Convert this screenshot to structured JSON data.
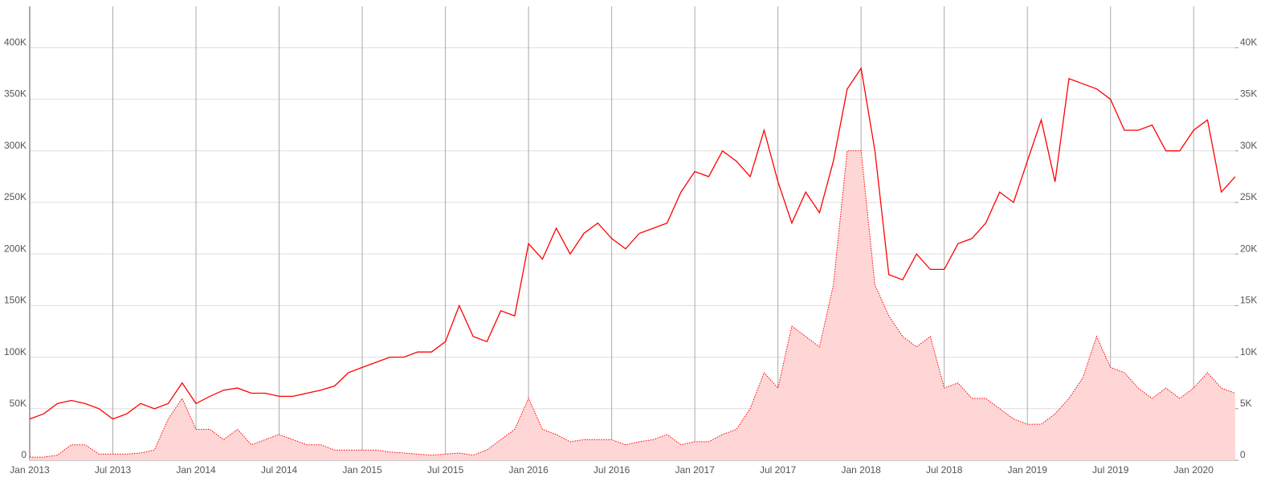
{
  "chart_data": {
    "type": "line-area",
    "x": [
      "2013-01",
      "2013-02",
      "2013-03",
      "2013-04",
      "2013-05",
      "2013-06",
      "2013-07",
      "2013-08",
      "2013-09",
      "2013-10",
      "2013-11",
      "2013-12",
      "2014-01",
      "2014-02",
      "2014-03",
      "2014-04",
      "2014-05",
      "2014-06",
      "2014-07",
      "2014-08",
      "2014-09",
      "2014-10",
      "2014-11",
      "2014-12",
      "2015-01",
      "2015-02",
      "2015-03",
      "2015-04",
      "2015-05",
      "2015-06",
      "2015-07",
      "2015-08",
      "2015-09",
      "2015-10",
      "2015-11",
      "2015-12",
      "2016-01",
      "2016-02",
      "2016-03",
      "2016-04",
      "2016-05",
      "2016-06",
      "2016-07",
      "2016-08",
      "2016-09",
      "2016-10",
      "2016-11",
      "2016-12",
      "2017-01",
      "2017-02",
      "2017-03",
      "2017-04",
      "2017-05",
      "2017-06",
      "2017-07",
      "2017-08",
      "2017-09",
      "2017-10",
      "2017-11",
      "2017-12",
      "2018-01",
      "2018-02",
      "2018-03",
      "2018-04",
      "2018-05",
      "2018-06",
      "2018-07",
      "2018-08",
      "2018-09",
      "2018-10",
      "2018-11",
      "2018-12",
      "2019-01",
      "2019-02",
      "2019-03",
      "2019-04",
      "2019-05",
      "2019-06",
      "2019-07",
      "2019-08",
      "2019-09",
      "2019-10",
      "2019-11",
      "2019-12",
      "2020-01",
      "2020-02",
      "2020-03",
      "2020-04"
    ],
    "series": [
      {
        "color": "#ff0000",
        "kind": "line",
        "axis": "y",
        "values": [
          40000,
          45000,
          55000,
          58000,
          55000,
          50000,
          40000,
          45000,
          55000,
          50000,
          55000,
          75000,
          55000,
          62000,
          68000,
          70000,
          65000,
          65000,
          62000,
          62000,
          65000,
          68000,
          72000,
          85000,
          90000,
          95000,
          100000,
          100000,
          105000,
          105000,
          115000,
          150000,
          120000,
          115000,
          145000,
          140000,
          210000,
          195000,
          225000,
          200000,
          220000,
          230000,
          215000,
          205000,
          220000,
          225000,
          230000,
          260000,
          280000,
          275000,
          300000,
          290000,
          275000,
          320000,
          270000,
          230000,
          260000,
          240000,
          290000,
          360000,
          380000,
          300000,
          180000,
          175000,
          200000,
          185000,
          185000,
          210000,
          215000,
          230000,
          260000,
          250000,
          290000,
          330000,
          270000,
          370000,
          365000,
          360000,
          350000,
          320000,
          320000,
          325000,
          300000,
          300000,
          320000,
          330000,
          260000,
          275000
        ]
      },
      {
        "color": "#ffd6d6",
        "stroke": "#ff0000",
        "kind": "area",
        "axis": "y2",
        "values": [
          300,
          300,
          500,
          1500,
          1500,
          600,
          600,
          600,
          700,
          1000,
          4000,
          6000,
          3000,
          3000,
          2000,
          3000,
          1500,
          2000,
          2500,
          2000,
          1500,
          1500,
          1000,
          1000,
          1000,
          1000,
          800,
          700,
          600,
          500,
          600,
          700,
          500,
          1000,
          2000,
          3000,
          6000,
          3000,
          2500,
          1800,
          2000,
          2000,
          2000,
          1500,
          1800,
          2000,
          2500,
          1500,
          1800,
          1800,
          2500,
          3000,
          5000,
          8500,
          7000,
          13000,
          12000,
          11000,
          17000,
          30000,
          30000,
          17000,
          14000,
          12000,
          11000,
          12000,
          7000,
          7500,
          6000,
          6000,
          5000,
          4000,
          3500,
          3500,
          4500,
          6000,
          8000,
          12000,
          9000,
          8500,
          7000,
          6000,
          7000,
          6000,
          7000,
          8500,
          7000,
          6500
        ]
      }
    ],
    "xlim": [
      "2013-01",
      "2020-04"
    ],
    "xticks": [
      {
        "value": "2013-01",
        "label": "Jan 2013"
      },
      {
        "value": "2013-07",
        "label": "Jul 2013"
      },
      {
        "value": "2014-01",
        "label": "Jan 2014"
      },
      {
        "value": "2014-07",
        "label": "Jul 2014"
      },
      {
        "value": "2015-01",
        "label": "Jan 2015"
      },
      {
        "value": "2015-07",
        "label": "Jul 2015"
      },
      {
        "value": "2016-01",
        "label": "Jan 2016"
      },
      {
        "value": "2016-07",
        "label": "Jul 2016"
      },
      {
        "value": "2017-01",
        "label": "Jan 2017"
      },
      {
        "value": "2017-07",
        "label": "Jul 2017"
      },
      {
        "value": "2018-01",
        "label": "Jan 2018"
      },
      {
        "value": "2018-07",
        "label": "Jul 2018"
      },
      {
        "value": "2019-01",
        "label": "Jan 2019"
      },
      {
        "value": "2019-07",
        "label": "Jul 2019"
      },
      {
        "value": "2020-01",
        "label": "Jan 2020"
      }
    ],
    "ylim": [
      0,
      440000
    ],
    "yticks": [
      0,
      {
        "value": 50000,
        "label": "50K"
      },
      {
        "value": 100000,
        "label": "100K"
      },
      {
        "value": 150000,
        "label": "150K"
      },
      {
        "value": 200000,
        "label": "200K"
      },
      {
        "value": 250000,
        "label": "250K"
      },
      {
        "value": 300000,
        "label": "300K"
      },
      {
        "value": 350000,
        "label": "350K"
      },
      {
        "value": 400000,
        "label": "400K"
      }
    ],
    "y2lim": [
      0,
      44000
    ],
    "y2ticks": [
      0,
      {
        "value": 5000,
        "label": "5K"
      },
      {
        "value": 10000,
        "label": "10K"
      },
      {
        "value": 15000,
        "label": "15K"
      },
      {
        "value": 20000,
        "label": "20K"
      },
      {
        "value": 25000,
        "label": "25K"
      },
      {
        "value": 30000,
        "label": "30K"
      },
      {
        "value": 35000,
        "label": "35K"
      },
      {
        "value": 40000,
        "label": "40K"
      }
    ],
    "grid": true
  }
}
